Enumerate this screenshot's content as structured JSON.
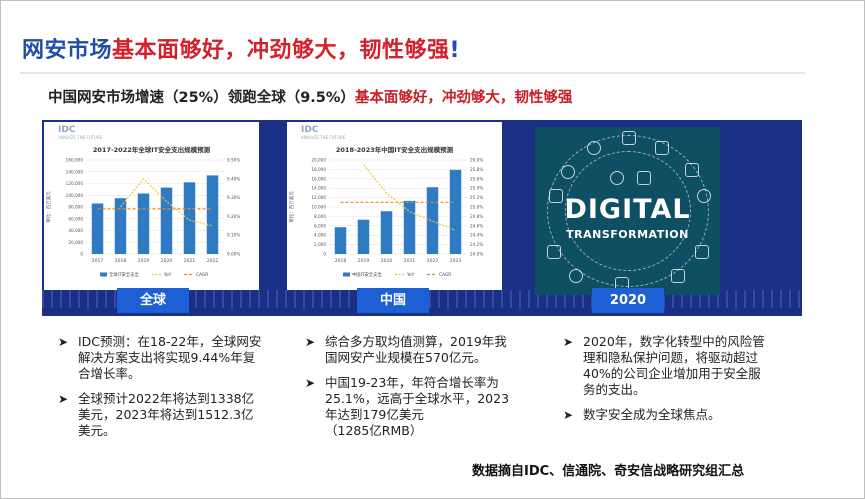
{
  "title": {
    "blue_part": "网安市场",
    "red_part": "基本面够好，冲劲够大，韧性够强",
    "mark": "!"
  },
  "subtitle": {
    "black_part": "中国网安市场增速（25%）领跑全球（9.5%）",
    "red_part": "基本面够好，冲劲够大，韧性够强"
  },
  "panels": {
    "global": {
      "logo": "IDC",
      "logo_tagline": "ANALYZE THE FUTURE",
      "chart_title": "2017-2022年全球IT安全支出规模预测",
      "caption": "全球"
    },
    "china": {
      "logo": "IDC",
      "logo_tagline": "ANALYZE THE FUTURE",
      "chart_title": "2018-2023年中国IT安全支出规模预测",
      "caption": "中国"
    },
    "digital": {
      "word1": "DIGITAL",
      "word2": "TRANSFORMATION",
      "caption": "2020"
    }
  },
  "chart_data": [
    {
      "type": "bar",
      "title": "2017-2022年全球IT安全支出规模预测",
      "ylabel": "单位：百万美元",
      "categories": [
        "2017",
        "2018",
        "2019",
        "2020",
        "2021",
        "2022"
      ],
      "ylim": [
        0,
        160000
      ],
      "yticks": [
        "0",
        "20,000",
        "40,000",
        "60,000",
        "80,000",
        "100,000",
        "120,000",
        "140,000",
        "160,000"
      ],
      "y2ticks": [
        "9.00%",
        "9.10%",
        "9.20%",
        "9.30%",
        "9.40%",
        "9.50%"
      ],
      "y2lim": [
        9.0,
        9.5
      ],
      "series": [
        {
          "name": "全球IT安全支出",
          "kind": "bar",
          "values": [
            86000,
            95000,
            103000,
            113000,
            122000,
            133800
          ]
        },
        {
          "name": "YoY",
          "kind": "line",
          "values": [
            null,
            9.25,
            9.4,
            9.28,
            9.18,
            9.15
          ]
        },
        {
          "name": "CAGR",
          "kind": "line",
          "values": [
            9.24,
            9.24,
            9.24,
            9.24,
            9.24,
            9.24
          ]
        }
      ],
      "colors": {
        "bar": "#2e7bc4",
        "yoy": "#f0c33c",
        "cagr": "#e08a2c"
      }
    },
    {
      "type": "bar",
      "title": "2018-2023年中国IT安全支出规模预测",
      "ylabel": "单位：百万美元",
      "categories": [
        "2018",
        "2019",
        "2020",
        "2021",
        "2022",
        "2023"
      ],
      "ylim": [
        0,
        20000
      ],
      "yticks": [
        "0",
        "2,000",
        "4,000",
        "6,000",
        "8,000",
        "10,000",
        "12,000",
        "14,000",
        "16,000",
        "18,000",
        "20,000"
      ],
      "y2ticks": [
        "24.0%",
        "24.2%",
        "24.4%",
        "24.6%",
        "24.8%",
        "25.0%",
        "25.2%",
        "25.4%",
        "25.6%",
        "25.8%",
        "26.0%"
      ],
      "y2lim": [
        24.0,
        26.0
      ],
      "series": [
        {
          "name": "中国IT安全支出",
          "kind": "bar",
          "values": [
            5700,
            7300,
            9100,
            11300,
            14200,
            17900
          ]
        },
        {
          "name": "YoY",
          "kind": "line",
          "values": [
            null,
            25.9,
            25.3,
            24.9,
            24.7,
            24.5
          ]
        },
        {
          "name": "CAGR",
          "kind": "line",
          "values": [
            25.1,
            25.1,
            25.1,
            25.1,
            25.1,
            25.1
          ]
        }
      ],
      "colors": {
        "bar": "#2e7bc4",
        "yoy": "#f0c33c",
        "cagr": "#e08a2c"
      }
    }
  ],
  "columns": {
    "global": [
      "IDC预测：在18-22年，全球网安解决方案支出将实现9.44%年复合增长率。",
      "全球预计2022年将达到1338亿美元，2023年将达到1512.3亿美元。"
    ],
    "china": [
      "综合多方取均值测算，2019年我国网安产业规模在570亿元。",
      "中国19-23年，年符合增长率为25.1%，远高于全球水平，2023年达到179亿美元"
    ],
    "china_extra": "（1285亿RMB）",
    "digital": [
      "2020年，数字化转型中的风险管理和隐私保护问题，将驱动超过40%的公司企业增加用于安全服务的支出。",
      "数字安全成为全球焦点。"
    ]
  },
  "source": "数据摘自IDC、信通院、奇安信战略研究组汇总"
}
